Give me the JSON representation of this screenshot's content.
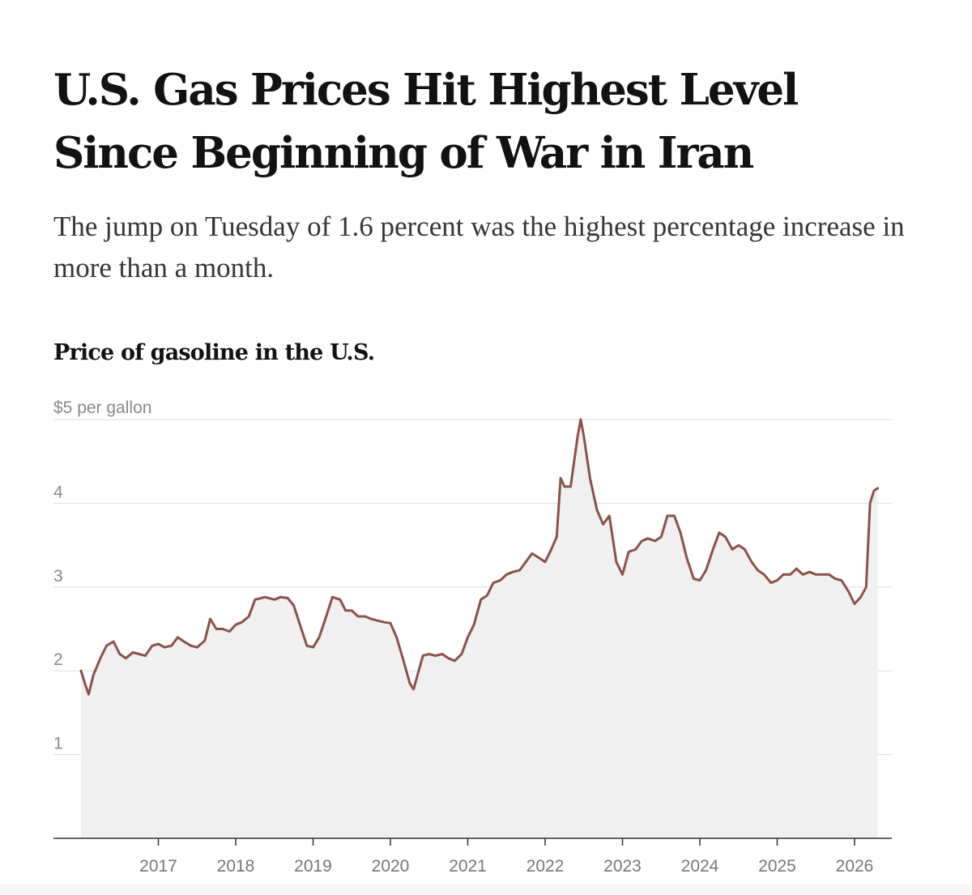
{
  "headline": "U.S. Gas Prices Hit Highest Level Since Beginning of War in Iran",
  "dek": "The jump on Tuesday of 1.6 percent was the highest percentage increase in more than a month.",
  "chart_data": {
    "type": "area",
    "title": "Price of gasoline in the U.S.",
    "ylabel": "$5 per gallon",
    "y_ticks": [
      "1",
      "2",
      "3",
      "4"
    ],
    "x_ticks": [
      "2017",
      "2018",
      "2019",
      "2020",
      "2021",
      "2022",
      "2023",
      "2024",
      "2025",
      "2026"
    ],
    "xlim": [
      2016.0,
      2026.4
    ],
    "ylim": [
      0,
      5
    ],
    "grid": true,
    "line_color": "#8b5248",
    "fill_color": "#f0f0f0",
    "series": [
      {
        "x": [
          2016.0,
          2016.05,
          2016.1,
          2016.16,
          2016.25,
          2016.33,
          2016.42,
          2016.5,
          2016.58,
          2016.67,
          2016.75,
          2016.83,
          2016.92,
          2017.0,
          2017.08,
          2017.17,
          2017.25,
          2017.33,
          2017.42,
          2017.5,
          2017.6,
          2017.67,
          2017.75,
          2017.83,
          2017.92,
          2018.0,
          2018.08,
          2018.17,
          2018.25,
          2018.38,
          2018.5,
          2018.58,
          2018.67,
          2018.75,
          2018.83,
          2018.92,
          2019.0,
          2019.08,
          2019.17,
          2019.25,
          2019.35,
          2019.42,
          2019.5,
          2019.58,
          2019.67,
          2019.75,
          2019.83,
          2019.92,
          2020.0,
          2020.08,
          2020.17,
          2020.25,
          2020.3,
          2020.42,
          2020.5,
          2020.58,
          2020.67,
          2020.75,
          2020.83,
          2020.92,
          2021.0,
          2021.08,
          2021.17,
          2021.25,
          2021.33,
          2021.42,
          2021.5,
          2021.58,
          2021.67,
          2021.75,
          2021.83,
          2021.92,
          2022.0,
          2022.08,
          2022.15,
          2022.2,
          2022.25,
          2022.33,
          2022.42,
          2022.46,
          2022.5,
          2022.58,
          2022.67,
          2022.75,
          2022.83,
          2022.92,
          2023.0,
          2023.08,
          2023.17,
          2023.25,
          2023.33,
          2023.42,
          2023.5,
          2023.58,
          2023.67,
          2023.75,
          2023.83,
          2023.92,
          2024.0,
          2024.08,
          2024.17,
          2024.25,
          2024.33,
          2024.42,
          2024.5,
          2024.58,
          2024.67,
          2024.75,
          2024.83,
          2024.92,
          2025.0,
          2025.08,
          2025.17,
          2025.25,
          2025.33,
          2025.42,
          2025.5,
          2025.58,
          2025.67,
          2025.75,
          2025.83,
          2025.92,
          2026.0,
          2026.08,
          2026.15,
          2026.2,
          2026.25,
          2026.3
        ],
        "y": [
          2.0,
          1.85,
          1.72,
          1.95,
          2.15,
          2.3,
          2.35,
          2.2,
          2.15,
          2.22,
          2.2,
          2.18,
          2.3,
          2.32,
          2.28,
          2.3,
          2.4,
          2.35,
          2.3,
          2.28,
          2.36,
          2.62,
          2.5,
          2.5,
          2.47,
          2.55,
          2.58,
          2.65,
          2.85,
          2.88,
          2.85,
          2.88,
          2.87,
          2.78,
          2.55,
          2.3,
          2.28,
          2.4,
          2.65,
          2.88,
          2.85,
          2.72,
          2.72,
          2.65,
          2.65,
          2.62,
          2.6,
          2.58,
          2.57,
          2.4,
          2.12,
          1.85,
          1.78,
          2.18,
          2.2,
          2.18,
          2.2,
          2.15,
          2.12,
          2.2,
          2.4,
          2.55,
          2.85,
          2.9,
          3.05,
          3.08,
          3.15,
          3.18,
          3.2,
          3.3,
          3.4,
          3.35,
          3.3,
          3.45,
          3.6,
          4.3,
          4.2,
          4.2,
          4.8,
          5.0,
          4.8,
          4.3,
          3.92,
          3.75,
          3.85,
          3.3,
          3.15,
          3.42,
          3.45,
          3.55,
          3.58,
          3.55,
          3.6,
          3.85,
          3.85,
          3.65,
          3.35,
          3.1,
          3.08,
          3.2,
          3.45,
          3.65,
          3.6,
          3.45,
          3.5,
          3.45,
          3.3,
          3.2,
          3.15,
          3.05,
          3.08,
          3.15,
          3.15,
          3.22,
          3.15,
          3.18,
          3.15,
          3.15,
          3.15,
          3.1,
          3.08,
          2.95,
          2.8,
          2.88,
          3.0,
          4.0,
          4.15,
          4.18
        ]
      }
    ]
  }
}
